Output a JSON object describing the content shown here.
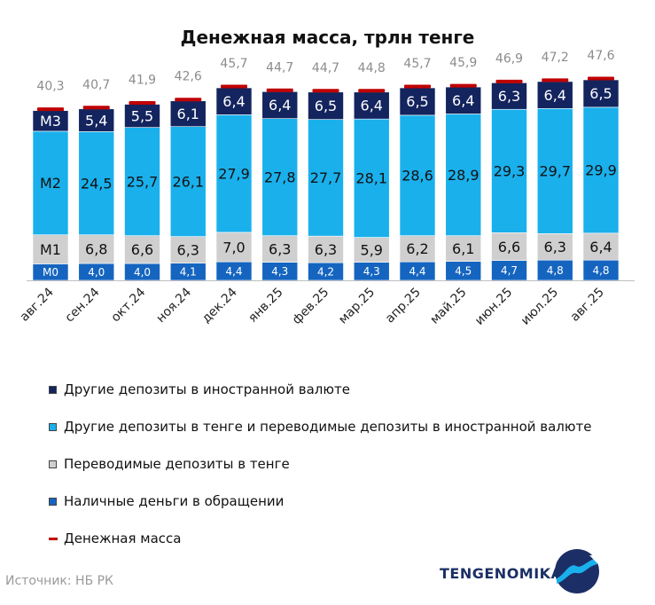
{
  "chart_data": {
    "type": "bar",
    "stacked": true,
    "title": "Денежная масса, трлн тенге",
    "categories": [
      "авг.24",
      "сен.24",
      "окт.24",
      "ноя.24",
      "дек.24",
      "янв.25",
      "фев.25",
      "мар.25",
      "апр.25",
      "май.25",
      "июн.25",
      "июл.25",
      "авг.25"
    ],
    "series": [
      {
        "name": "Наличные деньги в обращении",
        "short": "M0",
        "color": "#1565c0",
        "values": [
          3.9,
          4.0,
          4.0,
          4.1,
          4.4,
          4.3,
          4.2,
          4.3,
          4.4,
          4.5,
          4.7,
          4.8,
          4.8
        ]
      },
      {
        "name": "Переводимые депозиты в тенге",
        "short": "M1",
        "color": "#cfcfcf",
        "values": [
          6.9,
          6.8,
          6.6,
          6.3,
          7.0,
          6.3,
          6.3,
          5.9,
          6.2,
          6.1,
          6.6,
          6.3,
          6.4
        ]
      },
      {
        "name": "Другие депозиты в тенге и переводимые депозиты в иностранной валюте",
        "short": "M2",
        "color": "#1ab0ec",
        "values": [
          24.6,
          24.5,
          25.7,
          26.1,
          27.9,
          27.8,
          27.7,
          28.1,
          28.6,
          28.9,
          29.3,
          29.7,
          29.9
        ]
      },
      {
        "name": "Другие депозиты в иностранной валюте",
        "short": "M3",
        "color": "#13245e",
        "values": [
          4.9,
          5.4,
          5.5,
          6.1,
          6.4,
          6.4,
          6.5,
          6.4,
          6.5,
          6.4,
          6.3,
          6.4,
          6.5
        ]
      }
    ],
    "labels": {
      "M0": [
        "М0",
        "4,0",
        "4,0",
        "4,1",
        "4,4",
        "4,3",
        "4,2",
        "4,3",
        "4,4",
        "4,5",
        "4,7",
        "4,8",
        "4,8"
      ],
      "M1": [
        "М1",
        "6,8",
        "6,6",
        "6,3",
        "7,0",
        "6,3",
        "6,3",
        "5,9",
        "6,2",
        "6,1",
        "6,6",
        "6,3",
        "6,4"
      ],
      "M2": [
        "М2",
        "24,5",
        "25,7",
        "26,1",
        "27,9",
        "27,8",
        "27,7",
        "28,1",
        "28,6",
        "28,9",
        "29,3",
        "29,7",
        "29,9"
      ],
      "M3": [
        "М3",
        "5,4",
        "5,5",
        "6,1",
        "6,4",
        "6,4",
        "6,5",
        "6,4",
        "6,5",
        "6,4",
        "6,3",
        "6,4",
        "6,5"
      ]
    },
    "total": {
      "name": "Денежная масса",
      "color": "#c00000",
      "values": [
        40.3,
        40.7,
        41.9,
        42.6,
        45.7,
        44.7,
        44.7,
        44.8,
        45.7,
        45.9,
        46.9,
        47.2,
        47.6
      ],
      "labels": [
        "40,3",
        "40,7",
        "41,9",
        "42,6",
        "45,7",
        "44,7",
        "44,7",
        "44,8",
        "45,7",
        "45,9",
        "46,9",
        "47,2",
        "47,6"
      ]
    },
    "ylim": [
      0,
      47.6
    ],
    "grid": false,
    "legend_position": "bottom"
  },
  "legend": [
    {
      "label": "Другие депозиты в иностранной валюте",
      "color": "#13245e",
      "kind": "box"
    },
    {
      "label": "Другие депозиты в тенге и переводимые депозиты в иностранной валюте",
      "color": "#1ab0ec",
      "kind": "box"
    },
    {
      "label": "Переводимые депозиты в тенге",
      "color": "#cfcfcf",
      "kind": "box"
    },
    {
      "label": "Наличные деньги в обращении",
      "color": "#1565c0",
      "kind": "box"
    },
    {
      "label": "Денежная масса",
      "color": "#c00000",
      "kind": "line"
    }
  ],
  "source": "Источник: НБ РК",
  "brand": "TENGENOMIKA",
  "logo_icon": "tengenomika-logo-icon"
}
